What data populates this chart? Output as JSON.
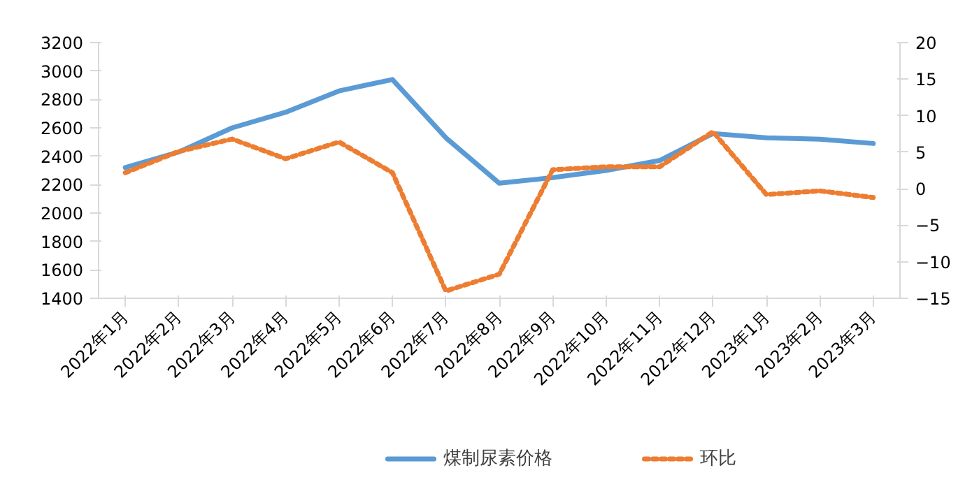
{
  "chart_data": {
    "type": "line",
    "categories": [
      "2022年1月",
      "2022年2月",
      "2022年3月",
      "2022年4月",
      "2022年5月",
      "2022年6月",
      "2022年7月",
      "2022年8月",
      "2022年9月",
      "2022年10月",
      "2022年11月",
      "2022年12月",
      "2023年1月",
      "2023年2月",
      "2023年3月"
    ],
    "series": [
      {
        "name": "煤制尿素价格",
        "color": "#5b9bd5",
        "line_style": "solid",
        "values": [
          2320,
          2430,
          2600,
          2710,
          2860,
          2940,
          2530,
          2210,
          2250,
          2300,
          2370,
          2560,
          2530,
          2520,
          2490
        ]
      },
      {
        "name": "环比",
        "color": "#ed7d31",
        "line_style": "dotted",
        "axis": "y2",
        "values": [
          2.2,
          5.1,
          6.8,
          4.1,
          6.4,
          2.2,
          -14.0,
          -11.7,
          2.6,
          3.0,
          3.0,
          7.8,
          -0.8,
          -0.3,
          -1.2
        ]
      }
    ],
    "ylim": [
      1400,
      3200
    ],
    "yticks": [
      1400,
      1600,
      1800,
      2000,
      2200,
      2400,
      2600,
      2800,
      3000,
      3200
    ],
    "y2lim": [
      -15,
      20
    ],
    "y2ticks": [
      -15,
      -10,
      -5,
      0,
      5,
      10,
      15,
      20
    ],
    "grid": false,
    "legend": "bottom",
    "marker": "none"
  }
}
